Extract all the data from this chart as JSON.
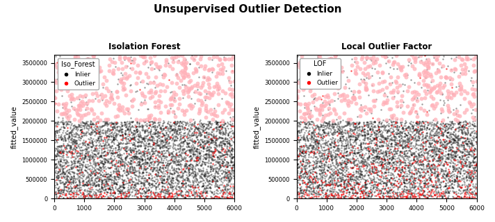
{
  "title": "Unsupervised Outlier Detection",
  "title_fontsize": 11,
  "title_fontweight": "bold",
  "subplot1_title": "Isolation Forest",
  "subplot2_title": "Local Outlier Factor",
  "legend1_title": "Iso_Forest",
  "legend2_title": "LOF",
  "ylabel": "fitted_value",
  "xlim": [
    0,
    6000
  ],
  "ylim": [
    0,
    3700000
  ],
  "n_points": 6000,
  "inlier_color": "black",
  "outlier_red_color": "red",
  "outlier_pink_color": "#ffb0b8",
  "inlier_alpha": 0.4,
  "outlier_red_alpha": 0.7,
  "outlier_pink_alpha": 0.75,
  "point_size_small": 3,
  "point_size_large": 18,
  "random_seed": 42,
  "figsize": [
    7.12,
    3.2
  ],
  "dpi": 100
}
